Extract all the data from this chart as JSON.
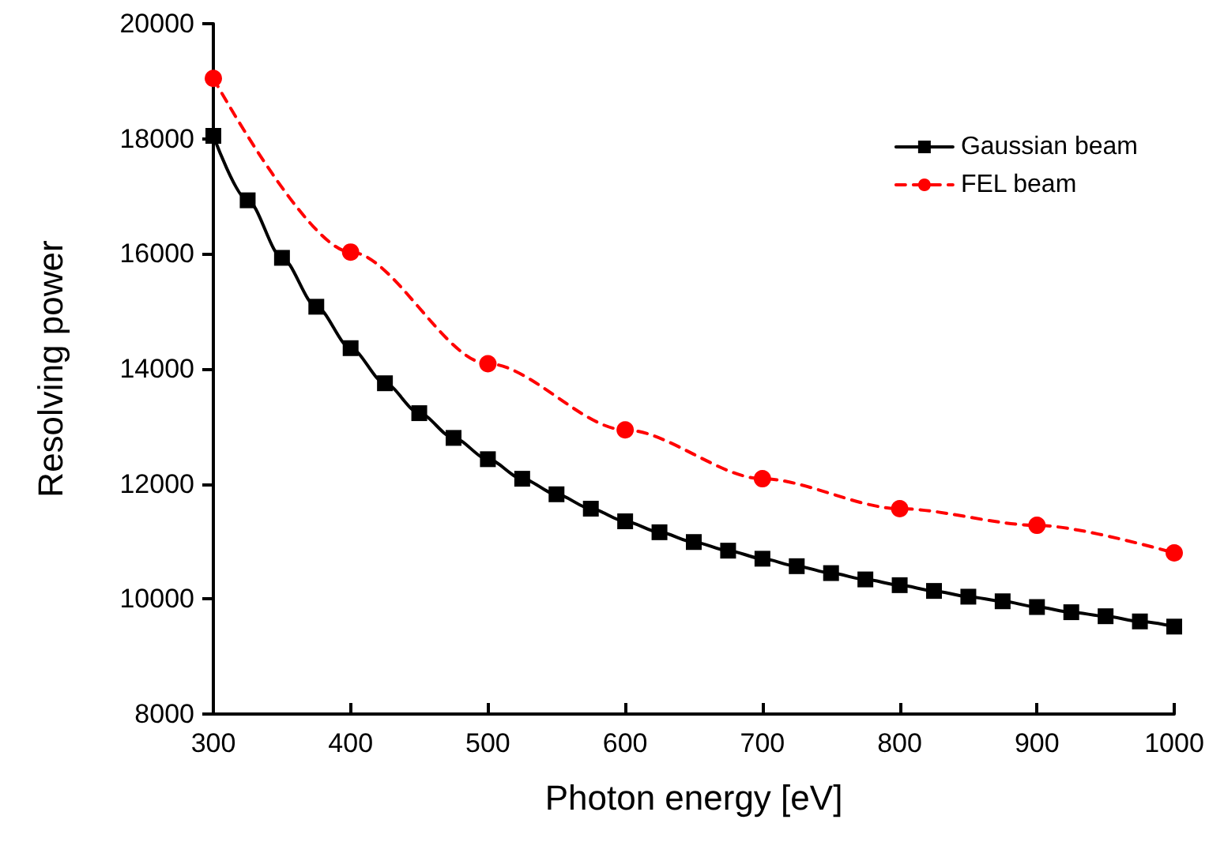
{
  "chart_data": {
    "type": "line",
    "xlabel": "Photon energy [eV]",
    "ylabel": "Resolving power",
    "xlim": [
      300,
      1000
    ],
    "xticks": [
      300,
      400,
      500,
      600,
      700,
      800,
      900,
      1000
    ],
    "ylim": [
      8000,
      20000
    ],
    "yticks": [
      8000,
      10000,
      12000,
      14000,
      16000,
      18000,
      20000
    ],
    "grid": false,
    "legend": "top right",
    "series": [
      {
        "name": "Gaussian beam",
        "color": "#000000",
        "marker": "square",
        "line_style": "solid",
        "x": [
          300,
          325,
          350,
          375,
          400,
          425,
          450,
          475,
          500,
          525,
          550,
          575,
          600,
          625,
          650,
          675,
          700,
          725,
          750,
          775,
          800,
          825,
          850,
          875,
          900,
          925,
          950,
          975,
          1000
        ],
        "values": [
          18050,
          16930,
          15930,
          15080,
          14360,
          13750,
          13230,
          12800,
          12430,
          12090,
          11820,
          11570,
          11350,
          11160,
          10990,
          10840,
          10700,
          10570,
          10450,
          10340,
          10240,
          10140,
          10040,
          9960,
          9860,
          9770,
          9700,
          9610,
          9520
        ]
      },
      {
        "name": "FEL beam",
        "color": "#ff0000",
        "marker": "circle",
        "line_style": "dashed",
        "x": [
          300,
          400,
          500,
          600,
          700,
          800,
          900,
          1000
        ],
        "values": [
          19050,
          16030,
          14090,
          12940,
          12090,
          11570,
          11280,
          10800
        ]
      }
    ]
  }
}
